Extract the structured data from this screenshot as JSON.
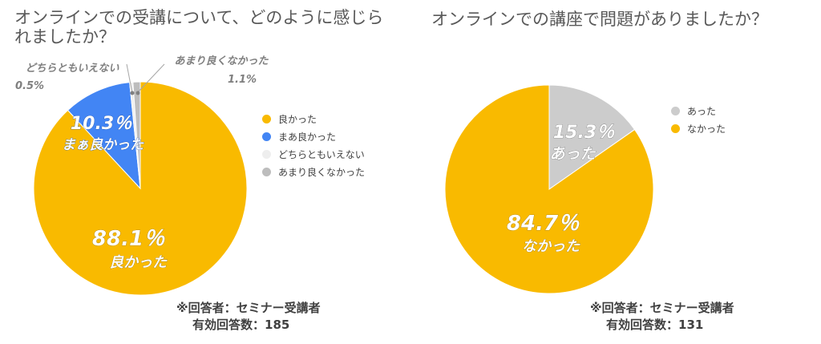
{
  "chart_data": [
    {
      "type": "pie",
      "title": "オンラインでの受講について、どのように感じられましたか？",
      "categories": [
        "良かった",
        "まあ良かった",
        "どちらともいえない",
        "あまり良くなかった"
      ],
      "values": [
        88.1,
        10.3,
        0.5,
        1.1
      ],
      "value_labels": [
        "88.1％",
        "10.3％",
        "0.5%",
        "1.1%"
      ],
      "slice_labels": [
        "良かった",
        "まぁ良かった",
        "どちらともいえない",
        "あまり良くなかった"
      ],
      "colors": [
        "#F9BA00",
        "#4285F4",
        "#EEEEEE",
        "#BDBDBD"
      ],
      "legend_position": "right",
      "note_lines": [
        "※回答者：セミナー受講者",
        "有効回答数：185"
      ]
    },
    {
      "type": "pie",
      "title": "オンラインでの講座で問題がありましたか？",
      "categories": [
        "あった",
        "なかった"
      ],
      "values": [
        15.3,
        84.7
      ],
      "value_labels": [
        "15.3％",
        "84.7％"
      ],
      "slice_labels": [
        "あった",
        "なかった"
      ],
      "colors": [
        "#CCCCCC",
        "#F9BA00"
      ],
      "legend_position": "right",
      "note_lines": [
        "※回答者：セミナー受講者",
        "有効回答数：131"
      ]
    }
  ]
}
